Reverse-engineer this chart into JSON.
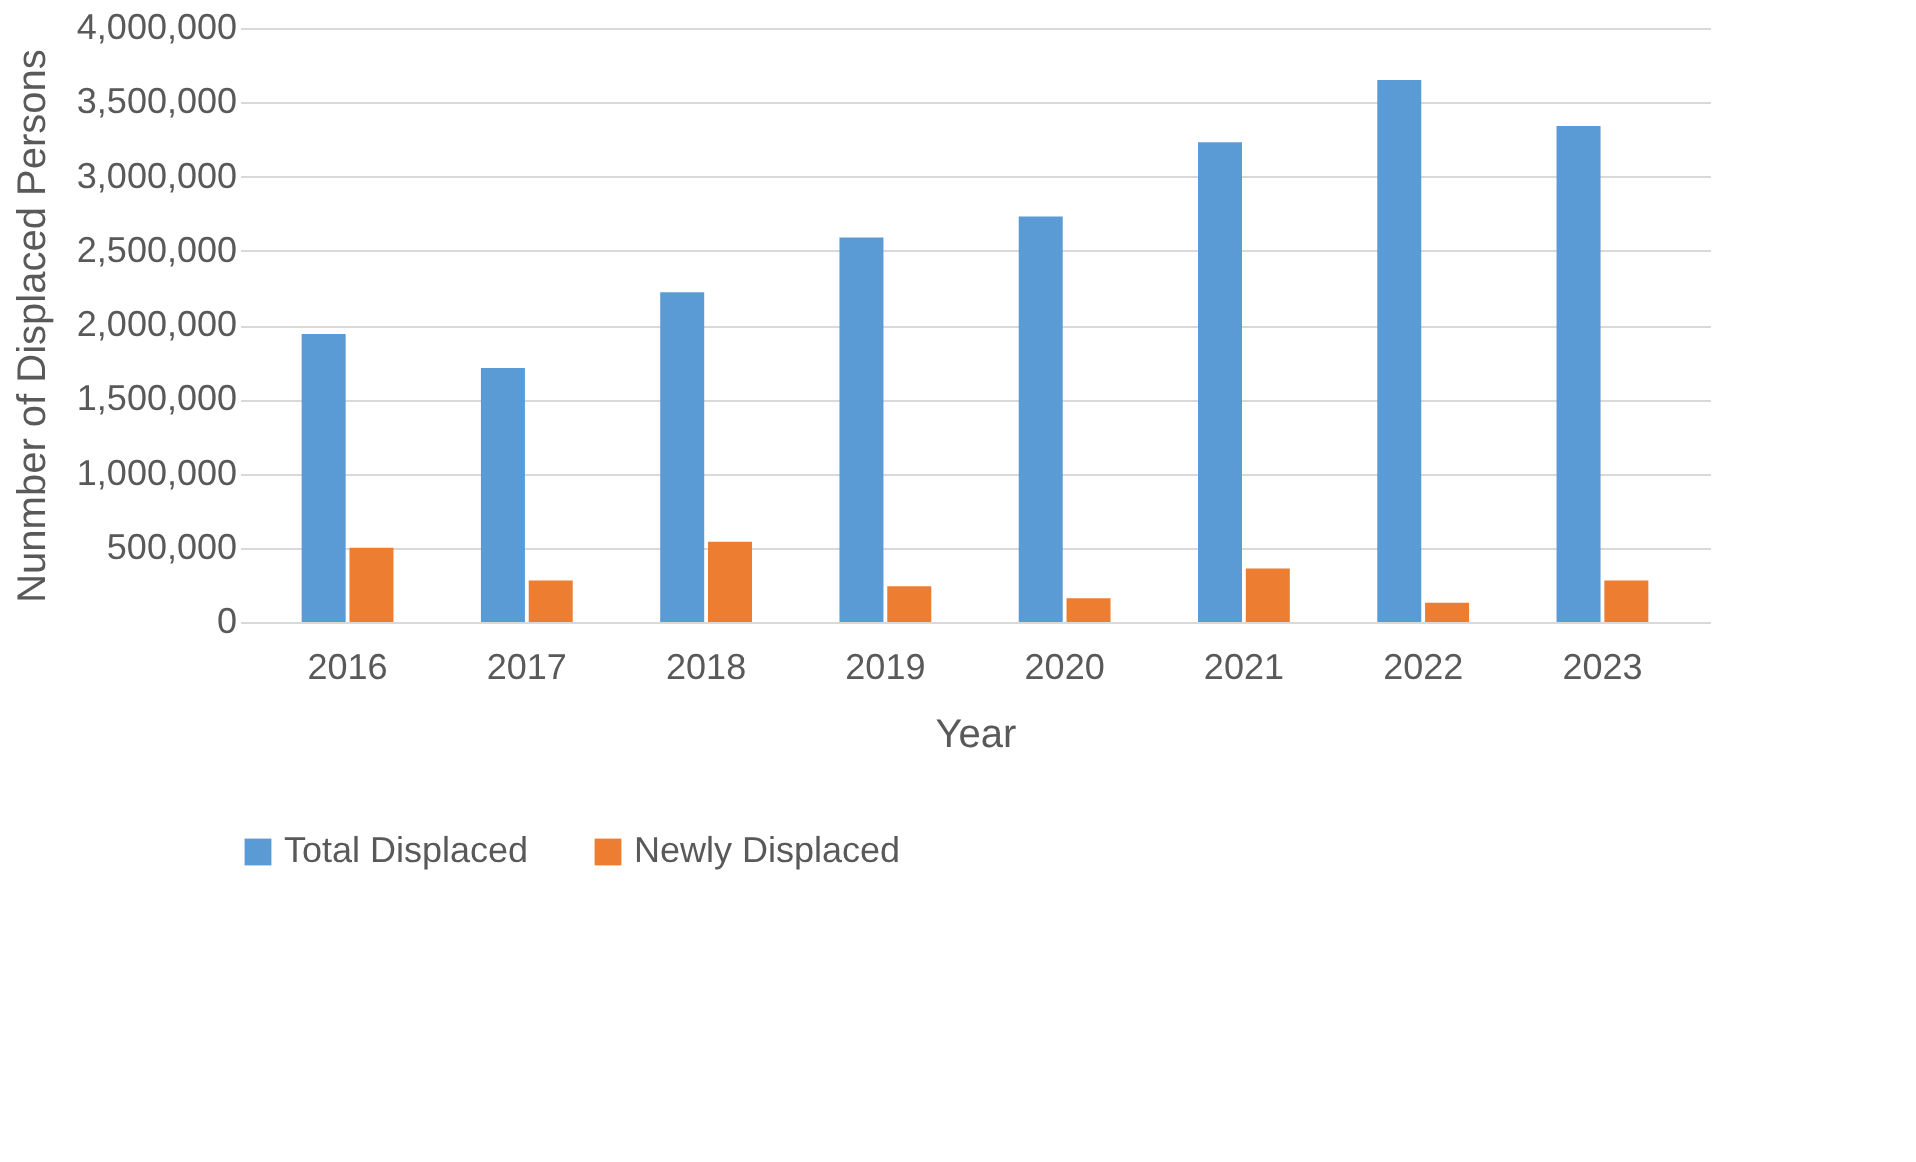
{
  "chart_data": {
    "type": "bar",
    "xlabel": "Year",
    "ylabel": "Nunmber of Displaced Persons",
    "categories": [
      "2016",
      "2017",
      "2018",
      "2019",
      "2020",
      "2021",
      "2022",
      "2023"
    ],
    "series": [
      {
        "name": "Total Displaced",
        "color": "#5b9bd5",
        "values": [
          1940000,
          1710000,
          2220000,
          2590000,
          2730000,
          3230000,
          3650000,
          3340000
        ]
      },
      {
        "name": "Newly Displaced",
        "color": "#ed7d31",
        "values": [
          500000,
          280000,
          540000,
          240000,
          160000,
          360000,
          130000,
          280000
        ]
      }
    ],
    "ylim": [
      0,
      4000000
    ],
    "yticks": [
      {
        "value": 0,
        "label": "0"
      },
      {
        "value": 500000,
        "label": "500,000"
      },
      {
        "value": 1000000,
        "label": "1,000,000"
      },
      {
        "value": 1500000,
        "label": "1,500,000"
      },
      {
        "value": 2000000,
        "label": "2,000,000"
      },
      {
        "value": 2500000,
        "label": "2,500,000"
      },
      {
        "value": 3000000,
        "label": "3,000,000"
      },
      {
        "value": 3500000,
        "label": "3,500,000"
      },
      {
        "value": 4000000,
        "label": "4,000,000"
      }
    ],
    "grid": "y",
    "legend": "bottom"
  }
}
